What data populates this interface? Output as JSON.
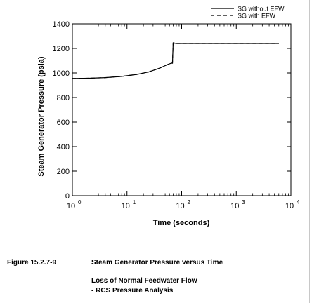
{
  "chart_data": {
    "type": "line",
    "ylabel": "Steam Generator Pressure (psia)",
    "xlabel": "Time (seconds)",
    "x_scale": "log",
    "xlim": [
      1,
      10000
    ],
    "ylim": [
      0,
      1400
    ],
    "x_ticks": [
      {
        "base": "10",
        "exp": "0"
      },
      {
        "base": "10",
        "exp": "1"
      },
      {
        "base": "10",
        "exp": "2"
      },
      {
        "base": "10",
        "exp": "3"
      },
      {
        "base": "10",
        "exp": "4"
      }
    ],
    "x_tick_values": [
      1,
      10,
      100,
      1000,
      10000
    ],
    "y_ticks": [
      "0",
      "200",
      "400",
      "600",
      "800",
      "1000",
      "1200",
      "1400"
    ],
    "y_tick_values": [
      0,
      200,
      400,
      600,
      800,
      1000,
      1200,
      1400
    ],
    "grid": false,
    "legend_position": "top-right",
    "series": [
      {
        "name": "SG without EFW",
        "style": "solid",
        "color": "#000000",
        "x": [
          1,
          2,
          4,
          8,
          15,
          25,
          40,
          55,
          65,
          68,
          70,
          72,
          74,
          80,
          100,
          300,
          1000,
          3000,
          6000
        ],
        "y": [
          955,
          957,
          962,
          972,
          988,
          1008,
          1040,
          1068,
          1080,
          1080,
          1245,
          1248,
          1242,
          1240,
          1240,
          1240,
          1240,
          1240,
          1240
        ]
      },
      {
        "name": "SG with EFW",
        "style": "dashed",
        "color": "#000000",
        "x": [
          1,
          2,
          4,
          8,
          15,
          25,
          40,
          55,
          65,
          68,
          70,
          72,
          74,
          80,
          100,
          300,
          1000,
          3000,
          6000
        ],
        "y": [
          955,
          957,
          962,
          972,
          988,
          1008,
          1040,
          1068,
          1080,
          1080,
          1245,
          1248,
          1242,
          1240,
          1240,
          1240,
          1240,
          1240,
          1240
        ]
      }
    ]
  },
  "caption": {
    "figure_number": "Figure 15.2.7-9",
    "title": "Steam Generator Pressure versus Time",
    "line2": "Loss of Normal Feedwater Flow",
    "line3": "- RCS Pressure Analysis"
  }
}
